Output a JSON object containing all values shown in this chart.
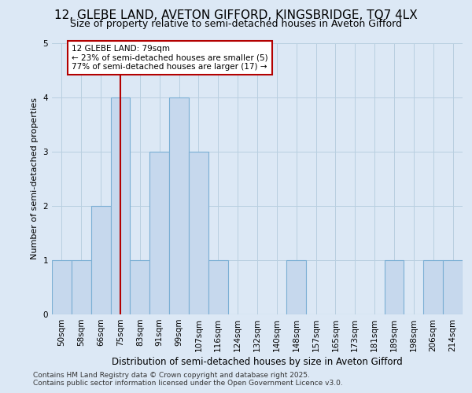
{
  "title_line1": "12, GLEBE LAND, AVETON GIFFORD, KINGSBRIDGE, TQ7 4LX",
  "title_line2": "Size of property relative to semi-detached houses in Aveton Gifford",
  "xlabel": "Distribution of semi-detached houses by size in Aveton Gifford",
  "ylabel": "Number of semi-detached properties",
  "footer_line1": "Contains HM Land Registry data © Crown copyright and database right 2025.",
  "footer_line2": "Contains public sector information licensed under the Open Government Licence v3.0.",
  "annotation_title": "12 GLEBE LAND: 79sqm",
  "annotation_line2": "← 23% of semi-detached houses are smaller (5)",
  "annotation_line3": "77% of semi-detached houses are larger (17) →",
  "bin_labels": [
    "50sqm",
    "58sqm",
    "66sqm",
    "75sqm",
    "83sqm",
    "91sqm",
    "99sqm",
    "107sqm",
    "116sqm",
    "124sqm",
    "132sqm",
    "140sqm",
    "148sqm",
    "157sqm",
    "165sqm",
    "173sqm",
    "181sqm",
    "189sqm",
    "198sqm",
    "206sqm",
    "214sqm"
  ],
  "bar_values": [
    1,
    1,
    2,
    4,
    1,
    3,
    4,
    3,
    1,
    0,
    0,
    0,
    1,
    0,
    0,
    0,
    0,
    1,
    0,
    1,
    1
  ],
  "bar_color": "#c6d8ed",
  "bar_edge_color": "#7bafd4",
  "highlight_bar_index": 3,
  "highlight_line_color": "#b30000",
  "ylim": [
    0,
    5
  ],
  "yticks": [
    0,
    1,
    2,
    3,
    4,
    5
  ],
  "background_color": "#dce8f5",
  "plot_bg_color": "#dce8f5",
  "grid_color": "#b8cfe0",
  "title1_fontsize": 11,
  "title2_fontsize": 9,
  "xlabel_fontsize": 8.5,
  "ylabel_fontsize": 8,
  "tick_fontsize": 7.5,
  "footer_fontsize": 6.5,
  "ann_fontsize": 7.5
}
